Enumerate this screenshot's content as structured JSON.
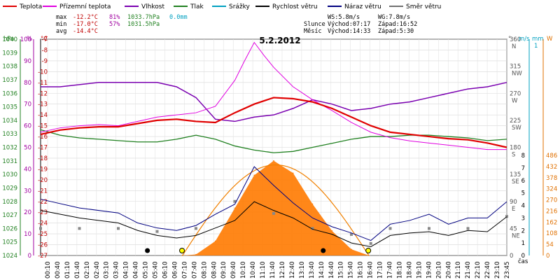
{
  "chart_data": {
    "type": "line",
    "title": "5.2.2012",
    "legend": [
      {
        "name": "Teplota",
        "color": "#e00000"
      },
      {
        "name": "Přízemní teplota",
        "color": "#e000e0"
      },
      {
        "name": "Vlhkost",
        "color": "#7a00b0"
      },
      {
        "name": "Tlak",
        "color": "#208020"
      },
      {
        "name": "Srážky",
        "color": "#00a0c0"
      },
      {
        "name": "Rychlost větru",
        "color": "#000000"
      },
      {
        "name": "Náraz větru",
        "color": "#000080"
      },
      {
        "name": "Směr větru",
        "color": "#707070"
      }
    ],
    "stats": {
      "max": {
        "label": "max",
        "temp": "-12.2°C",
        "hum": "81%",
        "pres": "1033.7hPa",
        "rain": "0.0mm"
      },
      "min": {
        "label": "min",
        "temp": "-17.0°C",
        "hum": "57%",
        "pres": "1031.5hPa"
      },
      "avg": {
        "label": "avg",
        "temp": "-14.4°C"
      }
    },
    "wind": {
      "ws": "WS:5.8m/s",
      "wg": "WG:7.8m/s"
    },
    "sun": {
      "label": "Slunce",
      "rise": "Východ:07:17",
      "set": "Západ:16:52"
    },
    "moon": {
      "label": "Měsíc",
      "rise": "Východ:14:33",
      "set": "Západ:5:30"
    },
    "axes": {
      "hpa": {
        "unit": "hPa",
        "ticks": [
          "1040",
          "1039",
          "1038",
          "1037",
          "1036",
          "1035",
          "1034",
          "1033",
          "1032",
          "1031",
          "1030",
          "1029",
          "1028",
          "1027",
          "1026",
          "1025",
          "1024"
        ]
      },
      "pct": {
        "unit": "%",
        "ticks": [
          "100",
          "90",
          "80",
          "70",
          "60",
          "50",
          "40",
          "30",
          "20",
          "10",
          "0"
        ]
      },
      "celsius": {
        "unit": "°C",
        "ticks": [
          "-7",
          "-8",
          "-9",
          "-10",
          "-11",
          "-12",
          "-13",
          "-14",
          "-15",
          "-16",
          "-17",
          "-18",
          "-19",
          "-20",
          "-21",
          "-22",
          "-23",
          "-24",
          "-25",
          "-26",
          "-27"
        ]
      },
      "dir": {
        "unit": "°",
        "ticks": [
          "360",
          "315",
          "270",
          "225",
          "180",
          "135",
          "90",
          "45",
          "0"
        ],
        "labels": [
          "N",
          "NW",
          "W",
          "SW",
          "S",
          "SE",
          "E",
          "NE",
          ""
        ]
      },
      "ms": {
        "unit": "m/s",
        "ticks": [
          "8",
          "7",
          "6",
          "5",
          "4",
          "3",
          "2",
          "1",
          "0"
        ]
      },
      "mm": {
        "unit": "mm",
        "ticks": [
          "1"
        ]
      },
      "w": {
        "unit": "W",
        "ticks": [
          "486",
          "432",
          "378",
          "324",
          "270",
          "216",
          "162",
          "108",
          "54",
          "0"
        ]
      },
      "time_label": "čas",
      "x_ticks": [
        "00:10",
        "00:40",
        "01:10",
        "01:40",
        "02:10",
        "02:40",
        "03:10",
        "03:40",
        "04:10",
        "04:40",
        "05:10",
        "05:40",
        "06:10",
        "06:40",
        "07:10",
        "07:40",
        "08:10",
        "08:40",
        "09:10",
        "09:40",
        "10:10",
        "10:40",
        "11:10",
        "11:40",
        "12:10",
        "12:40",
        "13:10",
        "13:40",
        "14:10",
        "14:40",
        "15:10",
        "15:40",
        "16:10",
        "16:40",
        "17:10",
        "17:40",
        "18:10",
        "18:40",
        "19:10",
        "19:40",
        "20:10",
        "20:40",
        "21:10",
        "21:40",
        "22:10",
        "22:40",
        "23:10",
        "23:45"
      ]
    },
    "series": [
      {
        "name": "Teplota",
        "unit": "°C",
        "x_hours": [
          0,
          1,
          2,
          3,
          4,
          5,
          6,
          7,
          8,
          9,
          10,
          11,
          12,
          13,
          14,
          15,
          16,
          17,
          18,
          19,
          20,
          21,
          22,
          23,
          24
        ],
        "values": [
          -15.8,
          -15.4,
          -15.2,
          -15.1,
          -15.1,
          -14.8,
          -14.5,
          -14.4,
          -14.6,
          -14.7,
          -13.8,
          -13.0,
          -12.4,
          -12.5,
          -12.8,
          -13.4,
          -14.2,
          -15.0,
          -15.6,
          -15.8,
          -16.0,
          -16.2,
          -16.3,
          -16.6,
          -17.0
        ]
      },
      {
        "name": "Přízemní teplota",
        "unit": "°C",
        "x_hours": [
          0,
          1,
          2,
          3,
          4,
          5,
          6,
          7,
          8,
          9,
          10,
          10.5,
          11,
          11.5,
          12,
          13,
          14,
          15,
          16,
          17,
          18,
          19,
          20,
          21,
          22,
          23,
          24
        ],
        "values": [
          -15.6,
          -15.2,
          -15.0,
          -14.9,
          -15.0,
          -14.6,
          -14.2,
          -14.0,
          -13.8,
          -13.2,
          -10.8,
          -9.0,
          -7.3,
          -8.5,
          -9.6,
          -11.4,
          -12.6,
          -13.6,
          -14.7,
          -15.6,
          -16.1,
          -16.4,
          -16.6,
          -16.8,
          -17.0,
          -17.2,
          -17.2
        ]
      },
      {
        "name": "Vlhkost",
        "unit": "%",
        "x_hours": [
          0,
          1,
          2,
          3,
          4,
          5,
          6,
          7,
          8,
          9,
          10,
          11,
          12,
          13,
          14,
          15,
          16,
          17,
          18,
          19,
          20,
          21,
          22,
          23,
          24
        ],
        "values": [
          78,
          78,
          79,
          80,
          80,
          80,
          80,
          78,
          73,
          63,
          62,
          64,
          65,
          68,
          72,
          70,
          67,
          68,
          70,
          71,
          73,
          75,
          77,
          78,
          80
        ]
      },
      {
        "name": "Tlak",
        "unit": "hPa",
        "x_hours": [
          0,
          1,
          2,
          3,
          4,
          5,
          6,
          7,
          8,
          9,
          10,
          11,
          12,
          13,
          14,
          15,
          16,
          17,
          18,
          19,
          20,
          21,
          22,
          23,
          24
        ],
        "values": [
          1033.3,
          1032.9,
          1032.7,
          1032.6,
          1032.5,
          1032.4,
          1032.4,
          1032.6,
          1032.9,
          1032.6,
          1032.1,
          1031.8,
          1031.6,
          1031.7,
          1032.0,
          1032.3,
          1032.6,
          1032.8,
          1032.8,
          1032.9,
          1032.9,
          1032.8,
          1032.7,
          1032.5,
          1032.6
        ]
      },
      {
        "name": "Rychlost větru",
        "unit": "m/s",
        "x_hours": [
          0,
          2,
          4,
          5,
          6,
          7,
          8,
          9,
          10,
          11,
          12,
          13,
          14,
          15,
          16,
          17,
          18,
          19,
          20,
          21,
          22,
          23,
          24
        ],
        "values": [
          3.6,
          3.0,
          2.6,
          2.0,
          1.6,
          1.4,
          1.6,
          2.2,
          2.8,
          4.3,
          3.6,
          3.0,
          2.1,
          1.7,
          1.0,
          0.7,
          1.6,
          1.8,
          1.9,
          1.6,
          2.0,
          1.9,
          3.1
        ]
      },
      {
        "name": "Náraz větru",
        "unit": "m/s",
        "x_hours": [
          0,
          2,
          4,
          5,
          6,
          7,
          8,
          9,
          10,
          11,
          12,
          13,
          14,
          15,
          16,
          17,
          18,
          19,
          20,
          21,
          22,
          23,
          24
        ],
        "values": [
          4.5,
          3.8,
          3.4,
          2.6,
          2.2,
          2.0,
          2.4,
          3.3,
          4.1,
          7.1,
          5.6,
          4.2,
          3.0,
          2.3,
          1.8,
          1.2,
          2.5,
          2.8,
          3.3,
          2.5,
          3.0,
          3.0,
          4.3
        ]
      },
      {
        "name": "Směr větru",
        "unit": "°",
        "x_hours": [
          0,
          2,
          4,
          6,
          8,
          10,
          12,
          14,
          16,
          17,
          18,
          20,
          22,
          24
        ],
        "values": [
          45,
          45,
          45,
          40,
          45,
          90,
          70,
          45,
          35,
          20,
          45,
          45,
          45,
          65
        ]
      },
      {
        "name": "Sluneční záření",
        "unit": "W",
        "x_hours": [
          7.3,
          8,
          9,
          10,
          11,
          12,
          13,
          14,
          15,
          16,
          16.9
        ],
        "values": [
          0,
          5,
          70,
          230,
          390,
          460,
          400,
          250,
          120,
          30,
          0
        ]
      }
    ]
  }
}
